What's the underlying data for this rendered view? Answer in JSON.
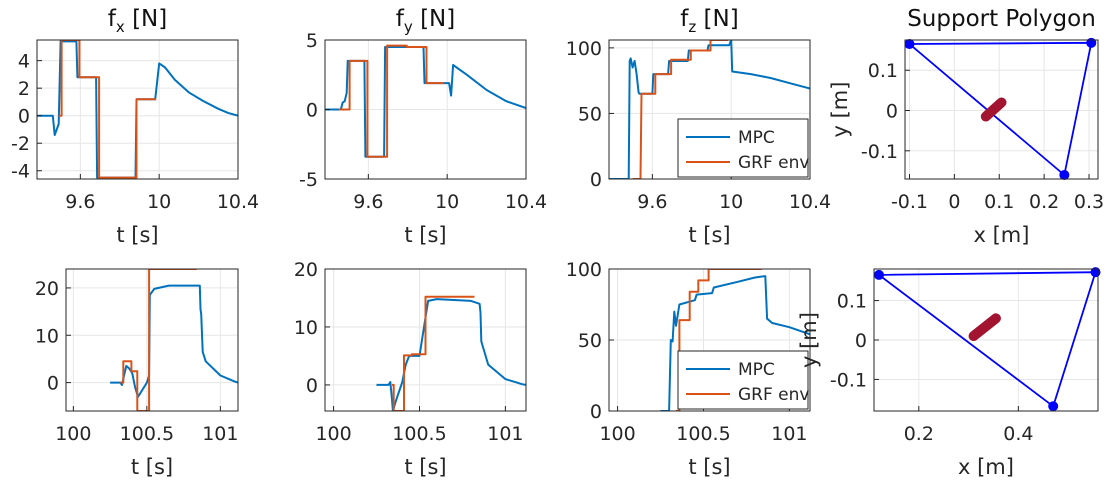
{
  "figure": {
    "colors": {
      "mpc": "#0072BD",
      "grf": "#D95319",
      "poly": "#0000FF",
      "com": "#A2142F",
      "grid": "#e6e6e6",
      "axis": "#262626"
    }
  },
  "chart_data": [
    {
      "type": "line",
      "id": "fx-top",
      "title": "f",
      "title_sub": "x",
      "title_unit": " [N]",
      "xlabel": "t [s]",
      "ylabel": "",
      "xlim": [
        9.38,
        10.4
      ],
      "ylim": [
        -4.6,
        5.5
      ],
      "xticks": [
        9.6,
        10,
        10.4
      ],
      "xtick_labels": [
        "9.6",
        "10",
        "10.4"
      ],
      "yticks": [
        -4,
        -2,
        0,
        2,
        4
      ],
      "ytick_labels": [
        "-4",
        "-2",
        "0",
        "2",
        "4"
      ],
      "series": [
        {
          "name": "MPC",
          "x": [
            9.38,
            9.46,
            9.47,
            9.49,
            9.5,
            9.505,
            9.58,
            9.585,
            9.68,
            9.685,
            9.78,
            9.785,
            9.88,
            9.885,
            9.98,
            10.0,
            10.03,
            10.08,
            10.15,
            10.22,
            10.3,
            10.35,
            10.4
          ],
          "y": [
            0,
            0,
            -1.4,
            -0.6,
            5.4,
            5.4,
            5.4,
            2.8,
            2.8,
            -4.5,
            -4.5,
            -4.5,
            -4.5,
            1.2,
            1.2,
            3.8,
            3.5,
            2.6,
            1.7,
            1.1,
            0.5,
            0.2,
            0
          ]
        },
        {
          "name": "GRF env",
          "x": [
            9.49,
            9.505,
            9.505,
            9.595,
            9.595,
            9.695,
            9.695,
            9.795,
            9.795,
            9.885,
            9.885,
            9.985
          ],
          "y": [
            0,
            0,
            5.5,
            5.5,
            2.8,
            2.8,
            -4.5,
            -4.5,
            -4.5,
            -4.5,
            1.2,
            1.2
          ]
        }
      ]
    },
    {
      "type": "line",
      "id": "fy-top",
      "title": "f",
      "title_sub": "y",
      "title_unit": " [N]",
      "xlabel": "t [s]",
      "ylabel": "",
      "xlim": [
        9.38,
        10.4
      ],
      "ylim": [
        -5,
        5
      ],
      "xticks": [
        9.6,
        10,
        10.4
      ],
      "xtick_labels": [
        "9.6",
        "10",
        "10.4"
      ],
      "yticks": [
        -5,
        0,
        5
      ],
      "ytick_labels": [
        "-5",
        "0",
        "5"
      ],
      "series": [
        {
          "name": "MPC",
          "x": [
            9.38,
            9.46,
            9.47,
            9.48,
            9.49,
            9.495,
            9.58,
            9.585,
            9.68,
            9.685,
            9.78,
            9.785,
            9.88,
            9.885,
            9.99,
            10.01,
            10.02,
            10.03,
            10.1,
            10.2,
            10.3,
            10.4
          ],
          "y": [
            0,
            0,
            0.5,
            0.6,
            1.2,
            3.5,
            3.5,
            -3.4,
            -3.4,
            4.5,
            4.5,
            4.5,
            4.5,
            1.9,
            1.9,
            1.9,
            1.0,
            3.2,
            2.5,
            1.4,
            0.6,
            0.1
          ]
        },
        {
          "name": "GRF env",
          "x": [
            9.45,
            9.505,
            9.505,
            9.595,
            9.595,
            9.695,
            9.695,
            9.795,
            9.795,
            9.895,
            9.895,
            9.985
          ],
          "y": [
            0,
            0,
            3.5,
            3.5,
            -3.4,
            -3.4,
            4.6,
            4.6,
            4.5,
            4.5,
            1.9,
            1.9
          ]
        }
      ]
    },
    {
      "type": "line",
      "id": "fz-top",
      "title": "f",
      "title_sub": "z",
      "title_unit": " [N]",
      "xlabel": "t [s]",
      "ylabel": "",
      "xlim": [
        9.38,
        10.4
      ],
      "ylim": [
        0,
        106
      ],
      "xticks": [
        9.6,
        10,
        10.4
      ],
      "xtick_labels": [
        "9.6",
        "10",
        "10.4"
      ],
      "yticks": [
        0,
        50,
        100
      ],
      "ytick_labels": [
        "0",
        "50",
        "100"
      ],
      "legend": {
        "position": "lower-right",
        "entries": [
          "MPC",
          "GRF env"
        ]
      },
      "series": [
        {
          "name": "MPC",
          "x": [
            9.38,
            9.48,
            9.485,
            9.49,
            9.5,
            9.51,
            9.52,
            9.53,
            9.535,
            9.6,
            9.605,
            9.68,
            9.685,
            9.78,
            9.785,
            9.88,
            9.885,
            9.99,
            10.0,
            10.005,
            10.1,
            10.2,
            10.3,
            10.4
          ],
          "y": [
            0,
            0,
            90,
            92,
            85,
            90,
            80,
            66,
            65,
            65,
            80,
            80,
            90,
            90,
            98,
            98,
            102,
            102,
            106,
            82,
            80,
            77,
            73,
            69
          ]
        },
        {
          "name": "GRF env",
          "x": [
            9.5,
            9.54,
            9.545,
            9.615,
            9.615,
            9.695,
            9.695,
            9.795,
            9.795,
            9.895,
            9.895,
            9.985
          ],
          "y": [
            0,
            0,
            65,
            65,
            80,
            80,
            91,
            91,
            98,
            98,
            106,
            106
          ]
        }
      ]
    },
    {
      "type": "scatter",
      "id": "poly-top",
      "title": "Support Polygon",
      "xlabel": "x [m]",
      "ylabel": "y [m]",
      "xlim": [
        -0.11,
        0.32
      ],
      "ylim": [
        -0.17,
        0.175
      ],
      "xticks": [
        -0.1,
        0,
        0.1,
        0.2,
        0.3
      ],
      "xtick_labels": [
        "-0.1",
        "0",
        "0.1",
        "0.2",
        "0.3"
      ],
      "yticks": [
        -0.1,
        0,
        0.1
      ],
      "ytick_labels": [
        "-0.1",
        "0",
        "0.1"
      ],
      "polygon": {
        "x": [
          -0.1,
          0.305,
          0.245
        ],
        "y": [
          0.165,
          0.168,
          -0.16
        ]
      },
      "com_path": {
        "x": [
          0.07,
          0.105
        ],
        "y": [
          -0.015,
          0.02
        ]
      }
    },
    {
      "type": "line",
      "id": "fx-bottom",
      "title": "",
      "xlabel": "t [s]",
      "ylabel": "",
      "xlim": [
        99.95,
        101.12
      ],
      "ylim": [
        -6,
        24
      ],
      "xticks": [
        100,
        100.5,
        101
      ],
      "xtick_labels": [
        "100",
        "100.5",
        "101"
      ],
      "yticks": [
        0,
        10,
        20
      ],
      "ytick_labels": [
        "0",
        "10",
        "20"
      ],
      "series": [
        {
          "name": "MPC",
          "x": [
            100.25,
            100.32,
            100.33,
            100.34,
            100.36,
            100.38,
            100.4,
            100.42,
            100.44,
            100.5,
            100.515,
            100.52,
            100.55,
            100.65,
            100.8,
            100.86,
            100.865,
            100.87,
            100.88,
            100.9,
            101.0,
            101.1,
            101.12
          ],
          "y": [
            0,
            0,
            -0.5,
            0.8,
            3.5,
            3.0,
            2.0,
            -1.0,
            -3.0,
            0,
            1.5,
            18.5,
            19.8,
            20.5,
            20.5,
            20.5,
            15.5,
            14.5,
            6.5,
            4.5,
            1.5,
            0.2,
            0
          ]
        },
        {
          "name": "GRF env",
          "x": [
            100.32,
            100.34,
            100.34,
            100.395,
            100.395,
            100.435,
            100.435,
            100.515,
            100.515,
            100.84
          ],
          "y": [
            0,
            0,
            4.5,
            4.5,
            2.4,
            2.4,
            -6.0,
            -6.0,
            24.0,
            24.0
          ]
        }
      ]
    },
    {
      "type": "line",
      "id": "fy-bottom",
      "title": "",
      "xlabel": "t [s]",
      "ylabel": "",
      "xlim": [
        99.95,
        101.12
      ],
      "ylim": [
        -4.5,
        20
      ],
      "xticks": [
        100,
        100.5,
        101
      ],
      "xtick_labels": [
        "100",
        "100.5",
        "101"
      ],
      "yticks": [
        0,
        10,
        20
      ],
      "ytick_labels": [
        "0",
        "10",
        "20"
      ],
      "series": [
        {
          "name": "MPC",
          "x": [
            100.25,
            100.32,
            100.33,
            100.34,
            100.345,
            100.36,
            100.4,
            100.42,
            100.44,
            100.5,
            100.55,
            100.6,
            100.8,
            100.85,
            100.855,
            100.86,
            100.9,
            101.0,
            101.1,
            101.12
          ],
          "y": [
            0,
            0,
            0.5,
            -2.5,
            -4.5,
            -3.0,
            0.5,
            3.5,
            5.0,
            5.0,
            14.5,
            14.8,
            14.5,
            14.0,
            12.5,
            7.5,
            3.5,
            1.0,
            0.1,
            0
          ]
        },
        {
          "name": "GRF env",
          "x": [
            100.34,
            100.34,
            100.35,
            100.35,
            100.41,
            100.41,
            100.455,
            100.455,
            100.535,
            100.535,
            100.82
          ],
          "y": [
            0,
            0,
            0,
            -4.5,
            -4.5,
            5.1,
            5.1,
            5.3,
            5.3,
            15.2,
            15.2
          ]
        }
      ]
    },
    {
      "type": "line",
      "id": "fz-bottom",
      "title": "",
      "xlabel": "t [s]",
      "ylabel": "",
      "xlim": [
        99.95,
        101.12
      ],
      "ylim": [
        0,
        100
      ],
      "xticks": [
        100,
        100.5,
        101
      ],
      "xtick_labels": [
        "100",
        "100.5",
        "101"
      ],
      "yticks": [
        0,
        50,
        100
      ],
      "ytick_labels": [
        "0",
        "50",
        "100"
      ],
      "legend": {
        "position": "lower-right",
        "entries": [
          "MPC",
          "GRF env"
        ]
      },
      "series": [
        {
          "name": "MPC",
          "x": [
            100.25,
            100.3,
            100.31,
            100.32,
            100.33,
            100.34,
            100.36,
            100.45,
            100.46,
            100.55,
            100.56,
            100.7,
            100.8,
            100.86,
            100.87,
            100.9,
            101.0,
            101.12
          ],
          "y": [
            0,
            0,
            50,
            49,
            70,
            60,
            75,
            78,
            82,
            83,
            87,
            91,
            94,
            95,
            65,
            62,
            59,
            54
          ]
        },
        {
          "name": "GRF env",
          "x": [
            100.34,
            100.36,
            100.36,
            100.42,
            100.42,
            100.47,
            100.47,
            100.53,
            100.53,
            100.84
          ],
          "y": [
            0,
            0,
            64,
            64,
            84,
            84,
            92,
            92,
            100,
            100
          ]
        }
      ]
    },
    {
      "type": "scatter",
      "id": "poly-bottom",
      "title": "",
      "xlabel": "x [m]",
      "ylabel": "y [m]",
      "xlim": [
        0.11,
        0.56
      ],
      "ylim": [
        -0.18,
        0.18
      ],
      "xticks": [
        0.2,
        0.4
      ],
      "xtick_labels": [
        "0.2",
        "0.4"
      ],
      "yticks": [
        -0.1,
        0,
        0.1
      ],
      "ytick_labels": [
        "-0.1",
        "0",
        "0.1"
      ],
      "polygon": {
        "x": [
          0.12,
          0.555,
          0.47
        ],
        "y": [
          0.165,
          0.172,
          -0.168
        ]
      },
      "com_path": {
        "x": [
          0.31,
          0.355
        ],
        "y": [
          0.01,
          0.055
        ]
      }
    }
  ]
}
